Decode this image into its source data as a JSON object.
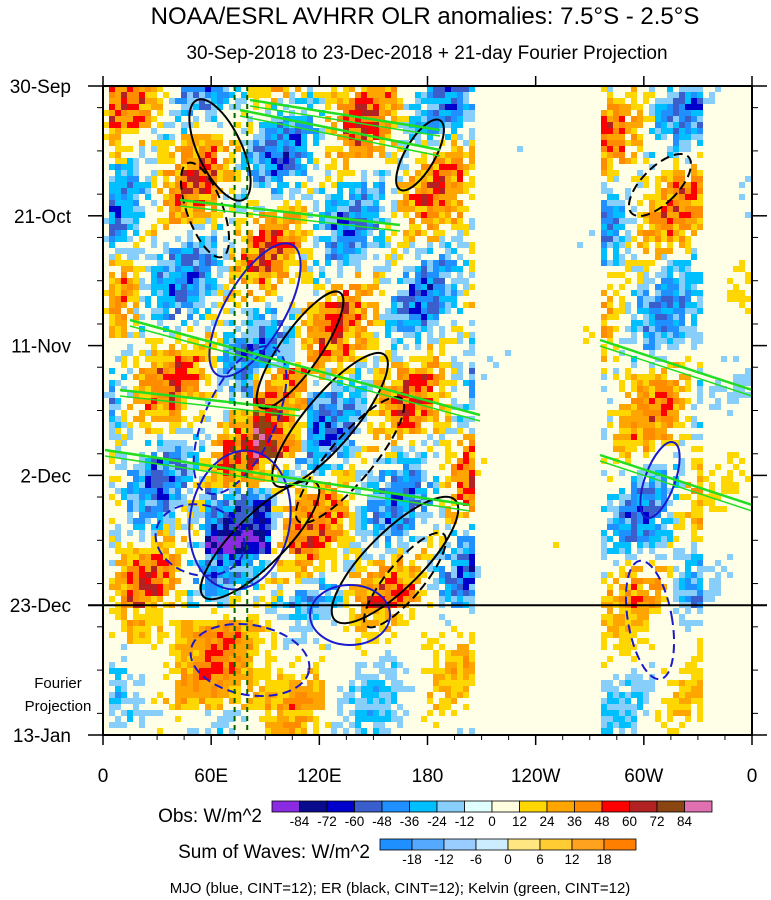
{
  "chart_data": {
    "type": "heatmap",
    "title": "NOAA/ESRL AVHRR OLR anomalies: 7.5°S - 2.5°S",
    "subtitle": "30-Sep-2018 to 23-Dec-2018 + 21-day Fourier Projection",
    "x_ticks": [
      "0",
      "60E",
      "120E",
      "180",
      "120W",
      "60W",
      "0"
    ],
    "x_tick_lon": [
      0,
      60,
      120,
      180,
      240,
      300,
      360
    ],
    "y_ticks": [
      "30-Sep",
      "21-Oct",
      "11-Nov",
      "2-Dec",
      "23-Dec",
      "13-Jan"
    ],
    "y_tick_day": [
      0,
      21,
      42,
      63,
      84,
      105
    ],
    "projection_label_line1": "Fourier",
    "projection_label_line2": "Projection",
    "obs_colorbar": {
      "label": "Obs: W/m^2",
      "levels": [
        "-84",
        "-72",
        "-60",
        "-48",
        "-36",
        "-24",
        "-12",
        "0",
        "12",
        "24",
        "36",
        "48",
        "60",
        "72",
        "84"
      ],
      "colors": [
        "#8a2be2",
        "#0a0a8c",
        "#0000cd",
        "#3a5fcd",
        "#1e90ff",
        "#00bfff",
        "#87cefa",
        "#e0ffff",
        "#ffffe0",
        "#ffd700",
        "#ffa500",
        "#ff8c00",
        "#ff0000",
        "#b22222",
        "#8b4513",
        "#e070b0"
      ]
    },
    "waves_colorbar": {
      "label": "Sum of Waves: W/m^2",
      "levels": [
        "-18",
        "-12",
        "-6",
        "0",
        "6",
        "12",
        "18"
      ],
      "colors": [
        "#1e90ff",
        "#55aaff",
        "#99ccff",
        "#ccecff",
        "#ffe680",
        "#ffcc33",
        "#ffa21f",
        "#ff7f00"
      ]
    },
    "legend_note": "MJO (blue, CINT=12); ER (black, CINT=12); Kelvin (green, CINT=12)",
    "series_colors": {
      "mjo": "#1a1acd",
      "er": "#000000",
      "kelvin": "#22dd22"
    },
    "obs_end_day": 84,
    "reference_lon_lines": [
      73,
      80
    ],
    "reference_line_color": "#006400"
  }
}
